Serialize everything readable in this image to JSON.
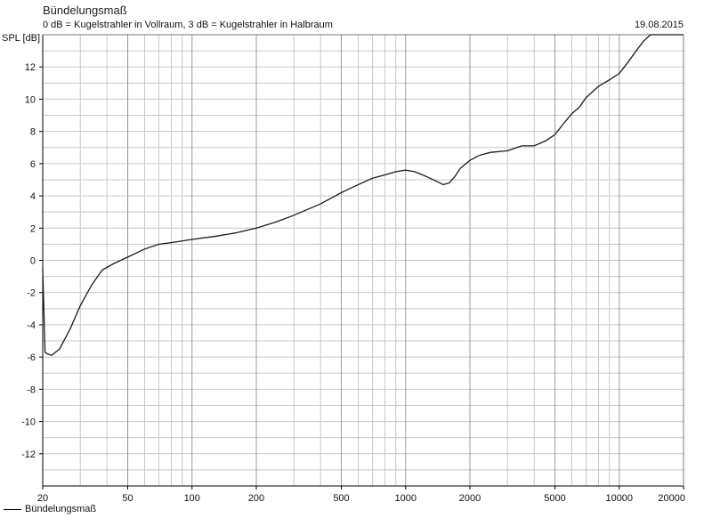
{
  "header": {
    "title": "Bündelungsmaß",
    "subtitle": "0 dB = Kugelstrahler in Vollraum, 3 dB = Kugelstrahler in Halbraum",
    "date": "19.08.2015"
  },
  "legend": {
    "label": "Bündelungsmaß"
  },
  "colors": {
    "grid": "#c8c8c8",
    "axis": "#000000",
    "line": "#1a1a1a",
    "background": "#ffffff"
  },
  "chart_data": {
    "type": "line",
    "title": "Bündelungsmaß",
    "subtitle": "0 dB = Kugelstrahler in Vollraum, 3 dB = Kugelstrahler in Halbraum",
    "ylabel": "SPL [dB]",
    "xlabel": "",
    "xscale": "log",
    "xlim": [
      20,
      20000
    ],
    "ylim": [
      -14,
      14
    ],
    "grid": true,
    "legend_position": "bottom-left",
    "x_ticks": [
      20,
      50,
      100,
      200,
      500,
      1000,
      2000,
      5000,
      10000,
      20000
    ],
    "x_tick_labels": [
      "20",
      "50",
      "100",
      "200",
      "500",
      "1000",
      "2000",
      "5000",
      "10000",
      "20000"
    ],
    "y_ticks": [
      -12,
      -10,
      -8,
      -6,
      -4,
      -2,
      0,
      2,
      4,
      6,
      8,
      10,
      12
    ],
    "y_tick_labels": [
      "-12",
      "-10",
      "-8",
      "-6",
      "-4",
      "-2",
      "0",
      "2",
      "4",
      "6",
      "8",
      "10",
      "12"
    ],
    "series": [
      {
        "name": "Bündelungsmaß",
        "x": [
          20,
          20.5,
          21,
          22,
          24,
          27,
          30,
          34,
          38,
          43,
          50,
          60,
          70,
          80,
          100,
          130,
          160,
          200,
          250,
          300,
          400,
          500,
          600,
          700,
          800,
          900,
          1000,
          1100,
          1200,
          1300,
          1400,
          1500,
          1600,
          1700,
          1800,
          2000,
          2200,
          2500,
          3000,
          3500,
          4000,
          4500,
          5000,
          5500,
          6000,
          6500,
          7000,
          8000,
          9000,
          10000,
          11000,
          12000,
          13000,
          14000,
          16000,
          18000,
          20000
        ],
        "y": [
          -0.5,
          -5.7,
          -5.8,
          -5.9,
          -5.5,
          -4.2,
          -2.8,
          -1.5,
          -0.6,
          -0.2,
          0.2,
          0.7,
          1.0,
          1.1,
          1.3,
          1.5,
          1.7,
          2.0,
          2.4,
          2.8,
          3.5,
          4.2,
          4.7,
          5.1,
          5.3,
          5.5,
          5.6,
          5.5,
          5.3,
          5.1,
          4.9,
          4.7,
          4.8,
          5.2,
          5.7,
          6.2,
          6.5,
          6.7,
          6.8,
          7.1,
          7.1,
          7.4,
          7.8,
          8.5,
          9.1,
          9.5,
          10.1,
          10.8,
          11.2,
          11.6,
          12.3,
          13.0,
          13.6,
          14,
          14,
          14,
          14
        ]
      }
    ]
  }
}
